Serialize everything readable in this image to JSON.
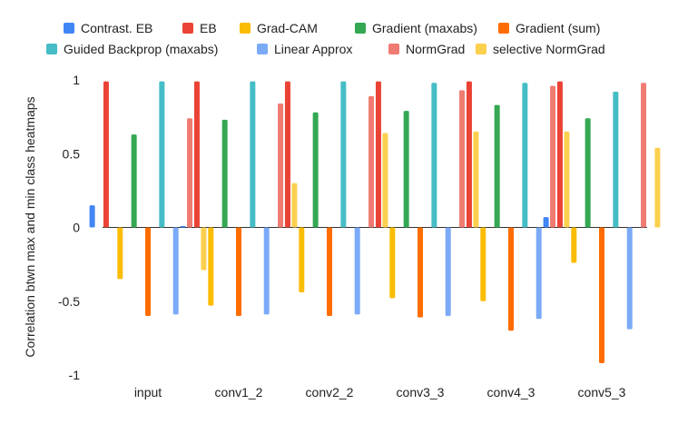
{
  "chart_data": {
    "type": "bar",
    "title": "",
    "xlabel": "",
    "ylabel": "Correlation btwn max and min class heatmaps",
    "ylim": [
      -1,
      1
    ],
    "yticks": [
      1,
      0.5,
      0,
      -0.5,
      -1
    ],
    "ytick_labels": [
      "1",
      "0.5",
      "0",
      "-0.5",
      "-1"
    ],
    "grid": false,
    "legend_position": "top",
    "categories": [
      "input",
      "conv1_2",
      "conv2_2",
      "conv3_3",
      "conv4_3",
      "conv5_3"
    ],
    "series": [
      {
        "name": "Contrast. EB",
        "color": "#4285f4",
        "values": [
          0.15,
          0.01,
          0.0,
          0.0,
          0.0,
          0.07
        ]
      },
      {
        "name": "EB",
        "color": "#ea4335",
        "values": [
          0.99,
          0.99,
          0.99,
          0.99,
          0.99,
          0.99
        ]
      },
      {
        "name": "Grad-CAM",
        "color": "#fbbc04",
        "values": [
          -0.35,
          -0.53,
          -0.44,
          -0.48,
          -0.5,
          -0.24
        ]
      },
      {
        "name": "Gradient (maxabs)",
        "color": "#34a853",
        "values": [
          0.63,
          0.73,
          0.78,
          0.79,
          0.83,
          0.74
        ]
      },
      {
        "name": "Gradient (sum)",
        "color": "#ff6d01",
        "values": [
          -0.6,
          -0.6,
          -0.6,
          -0.61,
          -0.7,
          -0.92
        ]
      },
      {
        "name": "Guided Backprop (maxabs)",
        "color": "#46bdc6",
        "values": [
          0.99,
          0.99,
          0.99,
          0.98,
          0.98,
          0.92
        ]
      },
      {
        "name": "Linear Approx",
        "color": "#7baaf7",
        "values": [
          -0.59,
          -0.59,
          -0.59,
          -0.6,
          -0.62,
          -0.69
        ]
      },
      {
        "name": "NormGrad",
        "color": "#f07b72",
        "values": [
          0.74,
          0.84,
          0.89,
          0.93,
          0.96,
          0.98
        ]
      },
      {
        "name": "selective NormGrad",
        "color": "#fcd04f",
        "values": [
          -0.29,
          0.3,
          0.64,
          0.65,
          0.65,
          0.54
        ]
      }
    ]
  }
}
